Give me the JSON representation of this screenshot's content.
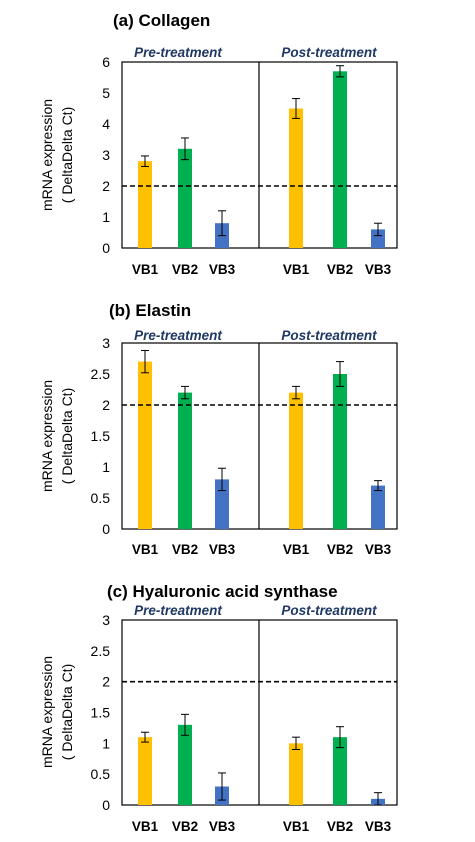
{
  "chart_data": [
    {
      "type": "bar",
      "title": "(a) Collagen",
      "ylabel": "mRNA expression",
      "ylabel2": "( DeltaDelta Ct)",
      "ylim": [
        0,
        6
      ],
      "yticks": [
        0,
        1,
        2,
        3,
        4,
        5,
        6
      ],
      "reference_line": 2,
      "groups": [
        {
          "label": "Pre-treatment",
          "categories": [
            "VB1",
            "VB2",
            "VB3"
          ],
          "values": [
            2.8,
            3.2,
            0.8
          ],
          "errors": [
            0.17,
            0.35,
            0.4
          ]
        },
        {
          "label": "Post-treatment",
          "categories": [
            "VB1",
            "VB2",
            "VB3"
          ],
          "values": [
            4.5,
            5.7,
            0.6
          ],
          "errors": [
            0.32,
            0.18,
            0.2
          ]
        }
      ]
    },
    {
      "type": "bar",
      "title": "(b) Elastin",
      "ylabel": "mRNA expression",
      "ylabel2": "( DeltaDelta Ct)",
      "ylim": [
        0,
        3
      ],
      "yticks": [
        0,
        0.5,
        1,
        1.5,
        2,
        2.5,
        3
      ],
      "reference_line": 2,
      "groups": [
        {
          "label": "Pre-treatment",
          "categories": [
            "VB1",
            "VB2",
            "VB3"
          ],
          "values": [
            2.7,
            2.2,
            0.8
          ],
          "errors": [
            0.18,
            0.1,
            0.18
          ]
        },
        {
          "label": "Post-treatment",
          "categories": [
            "VB1",
            "VB2",
            "VB3"
          ],
          "values": [
            2.2,
            2.5,
            0.7
          ],
          "errors": [
            0.1,
            0.2,
            0.08
          ]
        }
      ]
    },
    {
      "type": "bar",
      "title": "(c) Hyaluronic acid synthase",
      "ylabel": "mRNA expression",
      "ylabel2": "( DeltaDelta Ct)",
      "ylim": [
        0,
        3
      ],
      "yticks": [
        0,
        0.5,
        1,
        1.5,
        2,
        2.5,
        3
      ],
      "reference_line": 2,
      "groups": [
        {
          "label": "Pre-treatment",
          "categories": [
            "VB1",
            "VB2",
            "VB3"
          ],
          "values": [
            1.1,
            1.3,
            0.3
          ],
          "errors": [
            0.08,
            0.17,
            0.22
          ]
        },
        {
          "label": "Post-treatment",
          "categories": [
            "VB1",
            "VB2",
            "VB3"
          ],
          "values": [
            1.0,
            1.1,
            0.1
          ],
          "errors": [
            0.1,
            0.17,
            0.1
          ]
        }
      ]
    }
  ],
  "colors": {
    "VB1": "#ffc000",
    "VB2": "#00b050",
    "VB3": "#4472c4",
    "section_label": "#1f3864"
  }
}
